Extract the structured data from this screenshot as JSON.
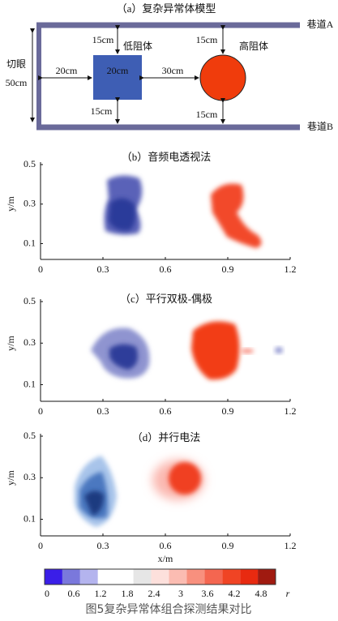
{
  "panel_a": {
    "title": "（a）复杂异常体模型",
    "roadway_a": "巷道A",
    "roadway_b": "巷道B",
    "cut": "切眼",
    "cut_width": "50cm",
    "low_body": "低阻体",
    "high_body": "高阻体",
    "dims": [
      "20cm",
      "20cm",
      "30cm",
      "15cm",
      "15cm",
      "15cm",
      "15cm"
    ]
  },
  "panels": [
    {
      "title": "（b）音频电透视法"
    },
    {
      "title": "（c）平行双极-偶极"
    },
    {
      "title": "（d）并行电法"
    }
  ],
  "axes": {
    "y_label": "y/m",
    "x_label": "x/m",
    "x_ticks": [
      "0",
      "0.3",
      "0.6",
      "0.9",
      "1.2"
    ],
    "y_ticks": [
      "0.5",
      "0.3",
      "0.1"
    ]
  },
  "colorbar": {
    "ticks": [
      "0",
      "0.6",
      "1.2",
      "1.8",
      "2.4",
      "3",
      "3.6",
      "4.2",
      "4.8"
    ],
    "unit": "r"
  },
  "caption": "图5复杂异常体组合探测结果对比"
}
